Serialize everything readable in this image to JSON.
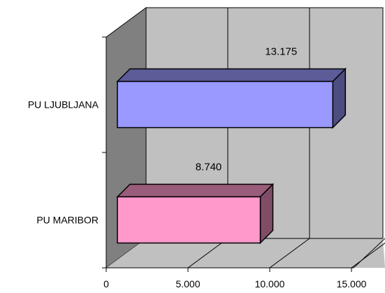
{
  "chart_data": {
    "type": "bar",
    "orientation": "horizontal",
    "style": "3d",
    "categories": [
      "PU LJUBLJANA",
      "PU MARIBOR"
    ],
    "values": [
      13175,
      8740
    ],
    "value_labels": [
      "13.175",
      "8.740"
    ],
    "colors": [
      "#9999FF",
      "#FF99CC"
    ],
    "x_ticks": [
      0,
      5000,
      10000,
      15000
    ],
    "x_tick_labels": [
      "0",
      "5.000",
      "10.000",
      "15.000"
    ],
    "xlim": [
      0,
      15000
    ],
    "grid": true,
    "legend": "none"
  }
}
